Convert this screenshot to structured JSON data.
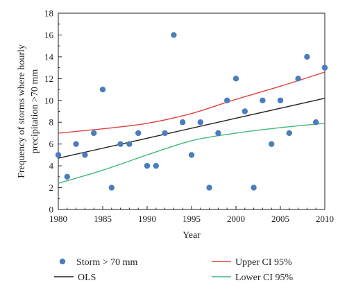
{
  "chart_data": {
    "type": "scatter",
    "xlabel": "Year",
    "ylabel_lines": [
      "Frequency of storms where hourly",
      "precipitation >70 mm"
    ],
    "xlim": [
      1980,
      2010
    ],
    "ylim": [
      0,
      18
    ],
    "xticks": [
      1980,
      1985,
      1990,
      1995,
      2000,
      2005,
      2010
    ],
    "yticks": [
      0,
      2,
      4,
      6,
      8,
      10,
      12,
      14,
      16,
      18
    ],
    "grid": false,
    "legend_position": "bottom",
    "series": [
      {
        "name": "Storm > 70 mm",
        "kind": "points",
        "color": "#4a7ebb",
        "x": [
          1980,
          1981,
          1982,
          1983,
          1984,
          1985,
          1986,
          1987,
          1988,
          1989,
          1990,
          1991,
          1992,
          1993,
          1994,
          1995,
          1996,
          1997,
          1998,
          1999,
          2000,
          2001,
          2002,
          2003,
          2004,
          2005,
          2006,
          2007,
          2008,
          2009,
          2010
        ],
        "y": [
          5,
          3,
          6,
          5,
          7,
          11,
          2,
          6,
          6,
          7,
          4,
          4,
          7,
          16,
          8,
          5,
          8,
          2,
          7,
          10,
          12,
          9,
          2,
          10,
          6,
          10,
          7,
          12,
          14,
          8,
          13
        ]
      },
      {
        "name": "OLS",
        "kind": "line",
        "color": "#222222",
        "x": [
          1980,
          2010
        ],
        "y": [
          4.7,
          10.2
        ]
      },
      {
        "name": "Upper CI 95%",
        "kind": "line",
        "color": "#e04040",
        "x": [
          1980,
          1985,
          1990,
          1995,
          2000,
          2005,
          2010
        ],
        "y": [
          7.0,
          7.4,
          7.9,
          8.8,
          10.1,
          11.3,
          12.6
        ]
      },
      {
        "name": "Lower CI 95%",
        "kind": "line",
        "color": "#3cb878",
        "x": [
          1980,
          1985,
          1990,
          1995,
          2000,
          2005,
          2010
        ],
        "y": [
          2.4,
          3.6,
          5.0,
          6.3,
          7.0,
          7.5,
          7.9
        ]
      }
    ]
  }
}
